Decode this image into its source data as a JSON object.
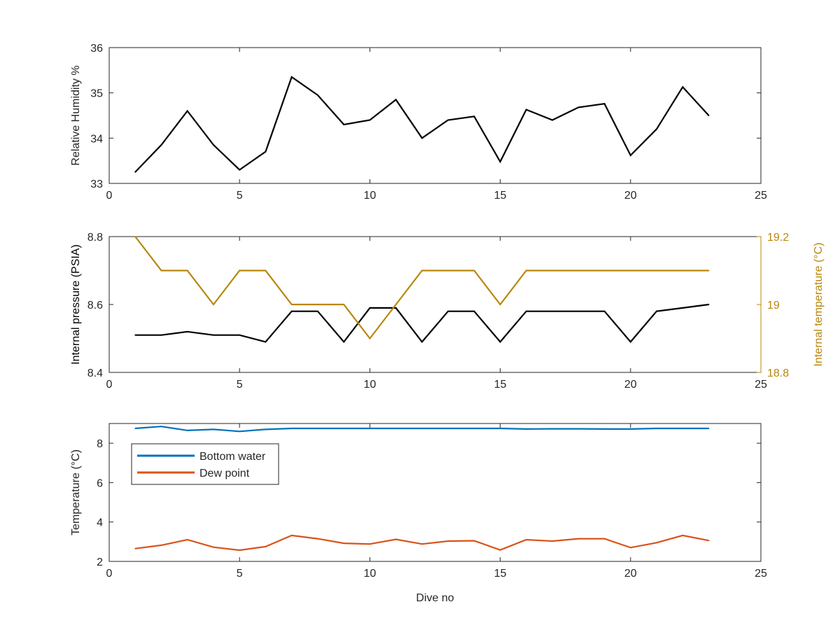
{
  "chart_data": [
    {
      "type": "line",
      "xlabel": "",
      "ylabel": "Relative Humidity %",
      "xlim": [
        0,
        25
      ],
      "ylim": [
        33,
        36
      ],
      "xticks": [
        "0",
        "5",
        "10",
        "15",
        "20",
        "25"
      ],
      "yticks": [
        "33",
        "34",
        "35",
        "36"
      ],
      "grid": false,
      "series": [
        {
          "color": "#000000",
          "x": [
            1,
            2,
            3,
            4,
            5,
            6,
            7,
            8,
            9,
            10,
            11,
            12,
            13,
            14,
            15,
            16,
            17,
            18,
            19,
            20,
            21,
            22,
            23
          ],
          "y": [
            33.25,
            33.85,
            34.6,
            33.85,
            33.3,
            33.7,
            35.35,
            34.95,
            34.3,
            34.4,
            34.85,
            34.0,
            34.4,
            34.48,
            33.48,
            34.63,
            34.4,
            34.68,
            34.76,
            33.62,
            34.2,
            35.13,
            34.5
          ]
        }
      ]
    },
    {
      "type": "line",
      "xlabel": "",
      "ylabel": "Internal pressure (PSIA)",
      "ylabel_right": "Internal temperature (°C)",
      "xlim": [
        0,
        25
      ],
      "ylim": [
        8.4,
        8.8
      ],
      "ylim_right": [
        18.8,
        19.2
      ],
      "xticks": [
        "0",
        "5",
        "10",
        "15",
        "20",
        "25"
      ],
      "yticks": [
        "8.4",
        "8.6",
        "8.8"
      ],
      "yticks_right": [
        "18.8",
        "19",
        "19.2"
      ],
      "right_axis_color": "#b8860b",
      "grid": false,
      "series": [
        {
          "axis": "left",
          "color": "#000000",
          "x": [
            1,
            2,
            3,
            4,
            5,
            6,
            7,
            8,
            9,
            10,
            11,
            12,
            13,
            14,
            15,
            16,
            17,
            18,
            19,
            20,
            21,
            22,
            23
          ],
          "y": [
            8.51,
            8.51,
            8.52,
            8.51,
            8.51,
            8.49,
            8.58,
            8.58,
            8.49,
            8.59,
            8.59,
            8.49,
            8.58,
            8.58,
            8.49,
            8.58,
            8.58,
            8.58,
            8.58,
            8.49,
            8.58,
            8.59,
            8.6
          ]
        },
        {
          "axis": "right",
          "color": "#b8860b",
          "x": [
            1,
            2,
            3,
            4,
            5,
            6,
            7,
            8,
            9,
            10,
            11,
            12,
            13,
            14,
            15,
            16,
            17,
            18,
            19,
            20,
            21,
            22,
            23
          ],
          "y": [
            19.2,
            19.1,
            19.1,
            19.0,
            19.1,
            19.1,
            19.0,
            19.0,
            19.0,
            18.9,
            19.0,
            19.1,
            19.1,
            19.1,
            19.0,
            19.1,
            19.1,
            19.1,
            19.1,
            19.1,
            19.1,
            19.1,
            19.1
          ]
        }
      ]
    },
    {
      "type": "line",
      "xlabel": "Dive no",
      "ylabel": "Temperature (°C)",
      "xlim": [
        0,
        25
      ],
      "ylim": [
        2,
        9
      ],
      "xticks": [
        "0",
        "5",
        "10",
        "15",
        "20",
        "25"
      ],
      "yticks": [
        "2",
        "4",
        "6",
        "8"
      ],
      "grid": false,
      "legend_position": "top-left",
      "series": [
        {
          "name": "Bottom water",
          "color": "#0072bd",
          "x": [
            1,
            2,
            3,
            4,
            5,
            6,
            7,
            8,
            9,
            10,
            11,
            12,
            13,
            14,
            15,
            16,
            17,
            18,
            19,
            20,
            21,
            22,
            23
          ],
          "y": [
            8.75,
            8.85,
            8.65,
            8.7,
            8.6,
            8.7,
            8.75,
            8.75,
            8.75,
            8.75,
            8.75,
            8.75,
            8.75,
            8.75,
            8.75,
            8.72,
            8.73,
            8.73,
            8.72,
            8.72,
            8.75,
            8.75,
            8.75
          ]
        },
        {
          "name": "Dew point",
          "color": "#d95319",
          "x": [
            1,
            2,
            3,
            4,
            5,
            6,
            7,
            8,
            9,
            10,
            11,
            12,
            13,
            14,
            15,
            16,
            17,
            18,
            19,
            20,
            21,
            22,
            23
          ],
          "y": [
            2.65,
            2.82,
            3.1,
            2.72,
            2.57,
            2.75,
            3.32,
            3.15,
            2.92,
            2.88,
            3.12,
            2.88,
            3.03,
            3.05,
            2.58,
            3.1,
            3.03,
            3.15,
            3.15,
            2.7,
            2.95,
            3.32,
            3.06
          ]
        }
      ]
    }
  ]
}
